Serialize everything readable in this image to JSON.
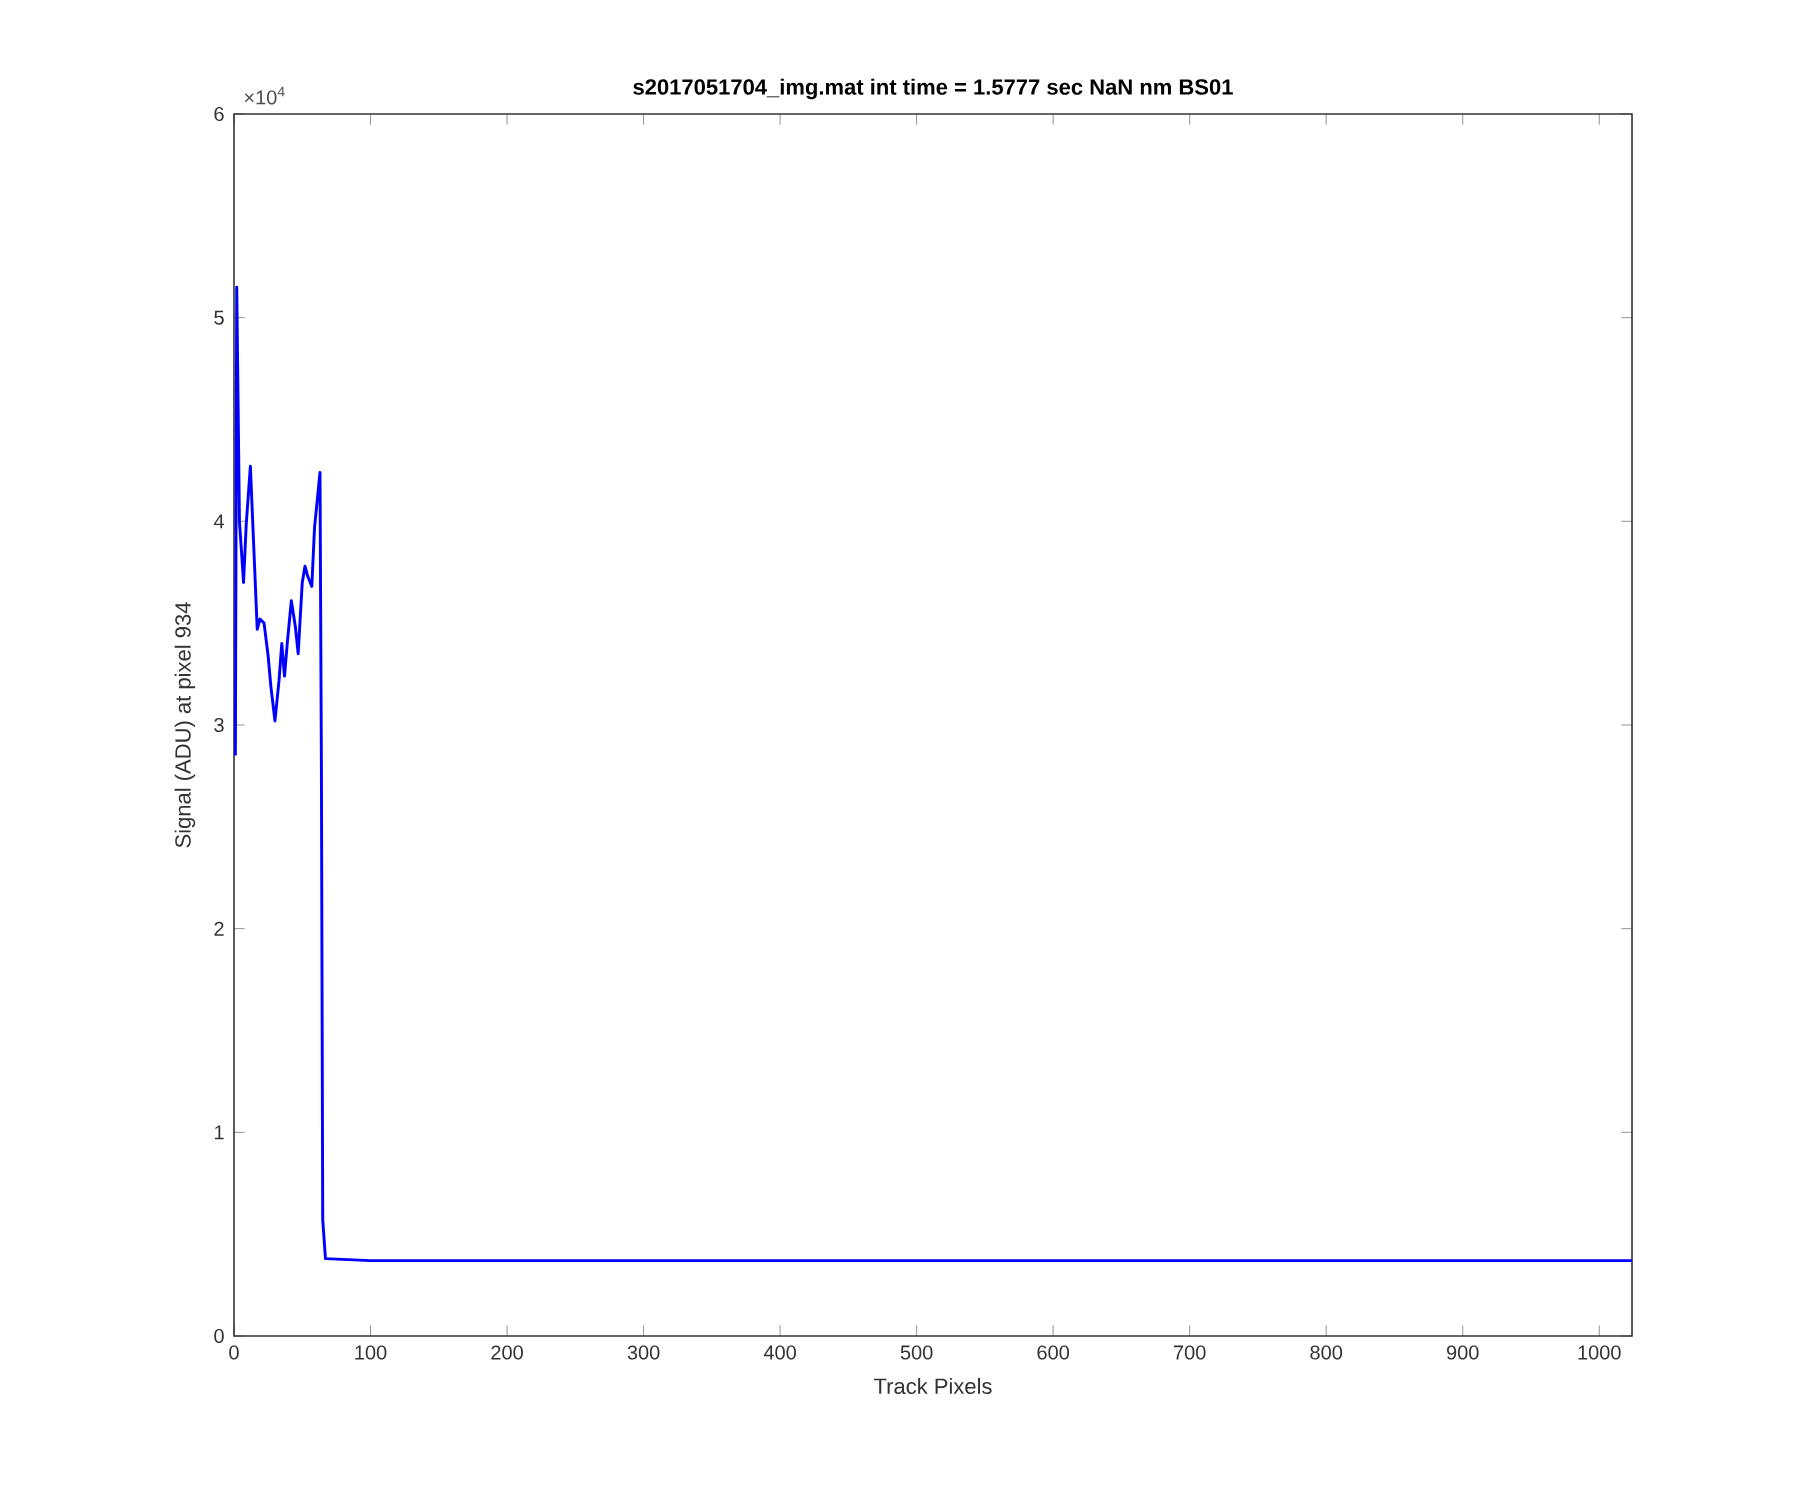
{
  "chart_data": {
    "type": "line",
    "title": "s2017051704_img.mat int time = 1.5777 sec  NaN nm BS01",
    "xlabel": "Track Pixels",
    "ylabel": "Signal (ADU) at pixel 934",
    "annotations": [
      "×10$^{4}$"
    ],
    "x": [
      1,
      2,
      4,
      7,
      9,
      12,
      17,
      19,
      22,
      25,
      27,
      30,
      33,
      35,
      37,
      39,
      42,
      45,
      47,
      50,
      52,
      54,
      57,
      59,
      63,
      64,
      65,
      67,
      100,
      300,
      590,
      650,
      1024
    ],
    "series": [
      {
        "color": "#0000ff",
        "values": [
          2.85,
          5.15,
          4.0,
          3.7,
          3.99,
          4.27,
          3.47,
          3.52,
          3.5,
          3.34,
          3.19,
          3.02,
          3.22,
          3.4,
          3.24,
          3.4,
          3.61,
          3.48,
          3.35,
          3.7,
          3.78,
          3.73,
          3.68,
          3.97,
          4.24,
          2.83,
          0.57,
          0.38,
          0.37,
          0.37,
          0.37,
          0.37,
          0.37
        ]
      }
    ],
    "xlim": [
      0,
      1024
    ],
    "ylim": [
      0,
      6
    ],
    "xticks": [
      0,
      100,
      200,
      300,
      400,
      500,
      600,
      700,
      800,
      900,
      1000
    ],
    "yticks": [
      0,
      1,
      2,
      3,
      4,
      5,
      6
    ]
  }
}
